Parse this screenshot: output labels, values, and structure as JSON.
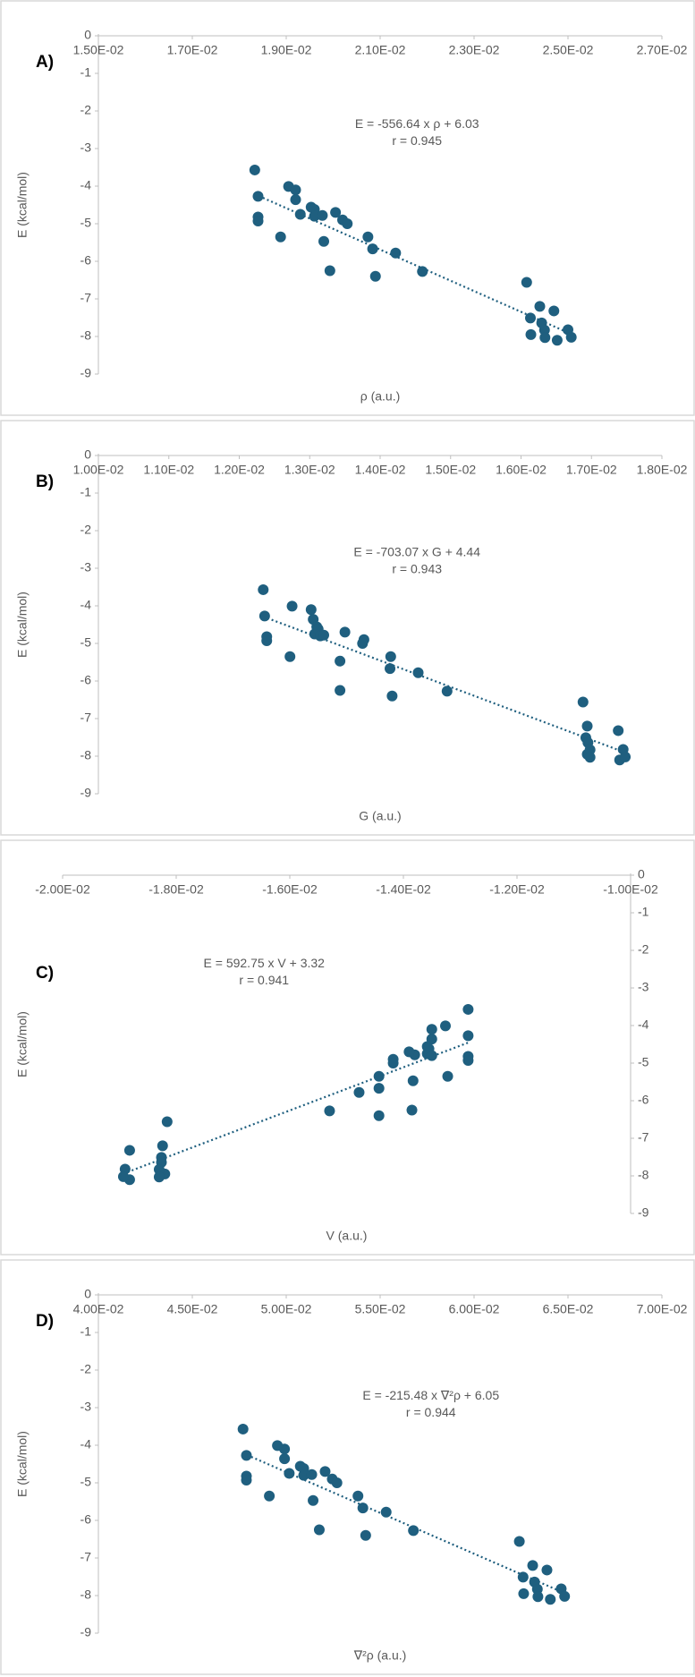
{
  "chart_data": [
    {
      "type": "scatter",
      "panel_label": "A)",
      "x_label": "ρ (a.u.)",
      "y_label": "E (kcal/mol)",
      "annotation": [
        "E = -556.64 x ρ + 6.03",
        "r = 0.945"
      ],
      "color": "#1f5f7f",
      "trendline": true,
      "y_axis_side": "left",
      "x": [
        0.01833,
        0.0184,
        0.0184,
        0.0184,
        0.01888,
        0.01905,
        0.0192,
        0.0192,
        0.0193,
        0.01953,
        0.0196,
        0.0196,
        0.01977,
        0.0198,
        0.01993,
        0.02005,
        0.0202,
        0.0203,
        0.02074,
        0.02084,
        0.0209,
        0.02133,
        0.0219,
        0.02412,
        0.0242,
        0.02421,
        0.0244,
        0.02444,
        0.0245,
        0.02451,
        0.0247,
        0.02477,
        0.025,
        0.02507
      ],
      "y": [
        -3.57,
        -4.27,
        -4.82,
        -4.93,
        -5.35,
        -4.01,
        -4.1,
        -4.36,
        -4.75,
        -4.56,
        -4.62,
        -4.8,
        -4.78,
        -5.47,
        -6.25,
        -4.7,
        -4.9,
        -5.0,
        -5.35,
        -5.67,
        -6.4,
        -5.78,
        -6.27,
        -6.56,
        -7.51,
        -7.95,
        -7.2,
        -7.64,
        -7.83,
        -8.03,
        -7.32,
        -8.1,
        -7.82,
        -8.02
      ],
      "xlim": [
        0.015,
        0.027
      ],
      "xticks": [
        {
          "value": 0.015,
          "label": "1.50E-02"
        },
        {
          "value": 0.017,
          "label": "1.70E-02"
        },
        {
          "value": 0.019,
          "label": "1.90E-02"
        },
        {
          "value": 0.021,
          "label": "2.10E-02"
        },
        {
          "value": 0.023,
          "label": "2.30E-02"
        },
        {
          "value": 0.025,
          "label": "2.50E-02"
        },
        {
          "value": 0.027,
          "label": "2.70E-02"
        }
      ],
      "ylim": [
        -9,
        0
      ],
      "yticks": [
        0,
        -1,
        -2,
        -3,
        -4,
        -5,
        -6,
        -7,
        -8,
        -9
      ]
    },
    {
      "type": "scatter",
      "panel_label": "B)",
      "x_label": "G (a.u.)",
      "y_label": "E (kcal/mol)",
      "annotation": [
        "E = -703.07 x G + 4.44",
        "r = 0.943"
      ],
      "color": "#1f5f7f",
      "trendline": true,
      "y_axis_side": "left",
      "x": [
        0.01234,
        0.01236,
        0.01239,
        0.01239,
        0.01272,
        0.01275,
        0.01302,
        0.01305,
        0.01307,
        0.0131,
        0.01312,
        0.01315,
        0.0132,
        0.01343,
        0.01343,
        0.0135,
        0.01377,
        0.01375,
        0.01415,
        0.01414,
        0.01417,
        0.01454,
        0.01495,
        0.01688,
        0.01692,
        0.01694,
        0.01694,
        0.01695,
        0.01698,
        0.01698,
        0.01738,
        0.0174,
        0.01745,
        0.01748
      ],
      "y": [
        -3.57,
        -4.27,
        -4.82,
        -4.93,
        -5.35,
        -4.01,
        -4.1,
        -4.36,
        -4.75,
        -4.56,
        -4.62,
        -4.8,
        -4.78,
        -5.47,
        -6.25,
        -4.7,
        -4.9,
        -5.0,
        -5.35,
        -5.67,
        -6.4,
        -5.78,
        -6.27,
        -6.56,
        -7.51,
        -7.95,
        -7.2,
        -7.64,
        -7.83,
        -8.03,
        -7.32,
        -8.1,
        -7.82,
        -8.02
      ],
      "xlim": [
        0.01,
        0.018
      ],
      "xticks": [
        {
          "value": 0.01,
          "label": "1.00E-02"
        },
        {
          "value": 0.011,
          "label": "1.10E-02"
        },
        {
          "value": 0.012,
          "label": "1.20E-02"
        },
        {
          "value": 0.013,
          "label": "1.30E-02"
        },
        {
          "value": 0.014,
          "label": "1.40E-02"
        },
        {
          "value": 0.015,
          "label": "1.50E-02"
        },
        {
          "value": 0.016,
          "label": "1.60E-02"
        },
        {
          "value": 0.017,
          "label": "1.70E-02"
        },
        {
          "value": 0.018,
          "label": "1.80E-02"
        }
      ],
      "ylim": [
        -9,
        0
      ],
      "yticks": [
        0,
        -1,
        -2,
        -3,
        -4,
        -5,
        -6,
        -7,
        -8,
        -9
      ]
    },
    {
      "type": "scatter",
      "panel_label": "C)",
      "x_label": "V (a.u.)",
      "y_label": "E (kcal/mol)",
      "annotation": [
        "E = 592.75 x V + 3.32",
        "r = 0.941"
      ],
      "color": "#1f5f7f",
      "trendline": true,
      "y_axis_side": "right",
      "x": [
        -0.01286,
        -0.01286,
        -0.01286,
        -0.01286,
        -0.01322,
        -0.01326,
        -0.0135,
        -0.0135,
        -0.01358,
        -0.01358,
        -0.01355,
        -0.0135,
        -0.0138,
        -0.01383,
        -0.01385,
        -0.0139,
        -0.01418,
        -0.01418,
        -0.01443,
        -0.01443,
        -0.01443,
        -0.01478,
        -0.0153,
        -0.01816,
        -0.01826,
        -0.0182,
        -0.01824,
        -0.01826,
        -0.0183,
        -0.0183,
        -0.01882,
        -0.01882,
        -0.0189,
        -0.01893
      ],
      "y": [
        -3.57,
        -4.27,
        -4.82,
        -4.93,
        -5.35,
        -4.01,
        -4.1,
        -4.36,
        -4.75,
        -4.56,
        -4.62,
        -4.8,
        -4.78,
        -5.47,
        -6.25,
        -4.7,
        -4.9,
        -5.0,
        -5.35,
        -5.67,
        -6.4,
        -5.78,
        -6.27,
        -6.56,
        -7.51,
        -7.95,
        -7.2,
        -7.64,
        -7.83,
        -8.03,
        -7.32,
        -8.1,
        -7.82,
        -8.02
      ],
      "xlim": [
        -0.02,
        -0.01
      ],
      "xticks": [
        {
          "value": -0.02,
          "label": "-2.00E-02"
        },
        {
          "value": -0.018,
          "label": "-1.80E-02"
        },
        {
          "value": -0.016,
          "label": "-1.60E-02"
        },
        {
          "value": -0.014,
          "label": "-1.40E-02"
        },
        {
          "value": -0.012,
          "label": "-1.20E-02"
        },
        {
          "value": -0.01,
          "label": "-1.00E-02"
        }
      ],
      "ylim": [
        -9,
        0
      ],
      "yticks": [
        0,
        -1,
        -2,
        -3,
        -4,
        -5,
        -6,
        -7,
        -8,
        -9
      ]
    },
    {
      "type": "scatter",
      "panel_label": "D)",
      "x_label": "∇²ρ (a.u.)",
      "y_label": "E (kcal/mol)",
      "annotation": [
        "E = -215.48 x ∇²ρ + 6.05",
        "r = 0.944"
      ],
      "color": "#1f5f7f",
      "trendline": true,
      "y_axis_side": "left",
      "x": [
        0.0477,
        0.04788,
        0.04788,
        0.04788,
        0.0491,
        0.04953,
        0.04991,
        0.04991,
        0.05016,
        0.05075,
        0.05093,
        0.05093,
        0.05136,
        0.05143,
        0.05176,
        0.05207,
        0.05245,
        0.0527,
        0.05382,
        0.05408,
        0.05423,
        0.05532,
        0.05677,
        0.06241,
        0.06261,
        0.06264,
        0.06312,
        0.06322,
        0.06337,
        0.0634,
        0.06388,
        0.06406,
        0.06464,
        0.06482
      ],
      "y": [
        -3.57,
        -4.27,
        -4.82,
        -4.93,
        -5.35,
        -4.01,
        -4.1,
        -4.36,
        -4.75,
        -4.56,
        -4.62,
        -4.8,
        -4.78,
        -5.47,
        -6.25,
        -4.7,
        -4.9,
        -5.0,
        -5.35,
        -5.67,
        -6.4,
        -5.78,
        -6.27,
        -6.56,
        -7.51,
        -7.95,
        -7.2,
        -7.64,
        -7.83,
        -8.03,
        -7.32,
        -8.1,
        -7.82,
        -8.02
      ],
      "xlim": [
        0.04,
        0.07
      ],
      "xticks": [
        {
          "value": 0.04,
          "label": "4.00E-02"
        },
        {
          "value": 0.045,
          "label": "4.50E-02"
        },
        {
          "value": 0.05,
          "label": "5.00E-02"
        },
        {
          "value": 0.055,
          "label": "5.50E-02"
        },
        {
          "value": 0.06,
          "label": "6.00E-02"
        },
        {
          "value": 0.065,
          "label": "6.50E-02"
        },
        {
          "value": 0.07,
          "label": "7.00E-02"
        }
      ],
      "ylim": [
        -9,
        0
      ],
      "yticks": [
        0,
        -1,
        -2,
        -3,
        -4,
        -5,
        -6,
        -7,
        -8,
        -9
      ]
    }
  ]
}
